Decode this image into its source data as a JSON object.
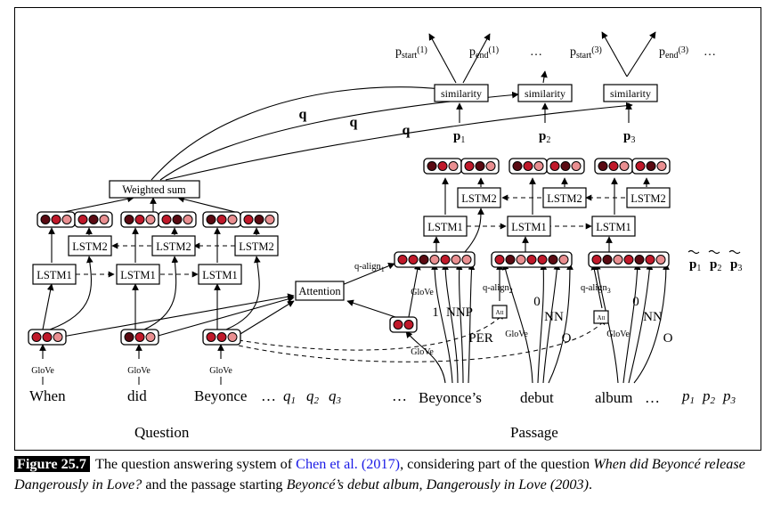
{
  "diagram": {
    "section_labels": {
      "question": "Question",
      "passage": "Passage"
    },
    "question_words": [
      "When",
      "did",
      "Beyonce"
    ],
    "question_ellipsis": "…",
    "question_vars": {
      "q1": "q1",
      "q2": "q2",
      "q3": "q3"
    },
    "passage_ellipsis": "…",
    "passage_words": [
      "Beyonce’s",
      "debut",
      "album"
    ],
    "passage_vars": [
      "p1",
      "p2",
      "p3"
    ],
    "lstm1": "LSTM1",
    "lstm2": "LSTM2",
    "weighted_sum": "Weighted sum",
    "attention": "Attention",
    "similarity": "similarity",
    "glove": "GloVe",
    "att_small": "Att",
    "q_label": "q",
    "p_labels": [
      "p1",
      "p2",
      "p3"
    ],
    "p_tilde": [
      "p1",
      "p2",
      "p3"
    ],
    "q_align": [
      "q-align1",
      "q-align2",
      "q-align3"
    ],
    "features": {
      "beyonces": [
        "1",
        "NNP",
        "PER"
      ],
      "debut": [
        "0",
        "NN",
        "O"
      ],
      "album": [
        "0",
        "NN",
        "O"
      ]
    },
    "outputs": [
      "pstart(1)",
      "pend(1)",
      "…",
      "pstart(3)",
      "pend(3)",
      "…"
    ]
  },
  "caption": {
    "label": "Figure 25.7",
    "text_before": "The question answering system of ",
    "cite": "Chen et al. (2017)",
    "text_mid": ", considering part of the question ",
    "question_it": "When did Beyoncé release Dangerously in Love?",
    "text_mid2": " and the passage starting ",
    "passage_it": "Beyoncé’s debut album, Dangerously in Love (2003)",
    "text_end": "."
  },
  "colors": {
    "dark": "#5a0a12",
    "mid": "#c0192a",
    "light": "#e98f91",
    "pale": "#f6c5c2"
  }
}
